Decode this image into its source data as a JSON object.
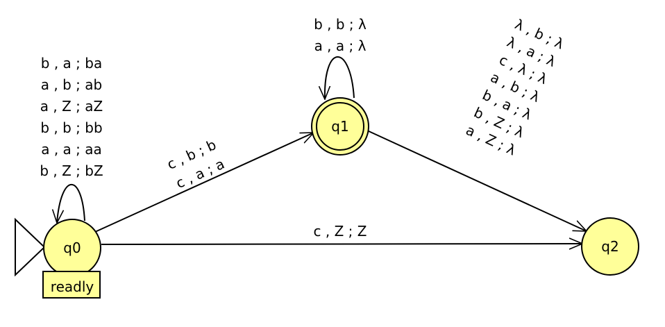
{
  "colors": {
    "state_fill": "#ffff99",
    "stroke": "#000000",
    "note_fill": "#ffff99"
  },
  "states": [
    {
      "id": "q0",
      "label": "q0",
      "initial": true,
      "final": false
    },
    {
      "id": "q1",
      "label": "q1",
      "initial": false,
      "final": true
    },
    {
      "id": "q2",
      "label": "q2",
      "initial": false,
      "final": false
    }
  ],
  "note": {
    "text": "readly"
  },
  "transitions": {
    "q0_loop": {
      "labels": [
        "b , a ; ba",
        "a , b ; ab",
        "a , Z ; aZ",
        "b , b ; bb",
        "a , a ; aa",
        "b , Z ; bZ"
      ]
    },
    "q1_loop": {
      "labels": [
        "b , b ; λ",
        "a , a ; λ"
      ]
    },
    "q0_q1": {
      "labels": [
        "c , b ; b",
        "c , a ; a"
      ]
    },
    "q0_q2": {
      "labels": [
        "c , Z ; Z"
      ]
    },
    "q1_q2": {
      "labels": [
        "λ , b ; λ",
        "λ , a ; λ",
        "c , λ ; λ",
        "a , b ; λ",
        "b , a ; λ",
        "b , Z ; λ",
        "a , Z ; λ"
      ]
    }
  }
}
